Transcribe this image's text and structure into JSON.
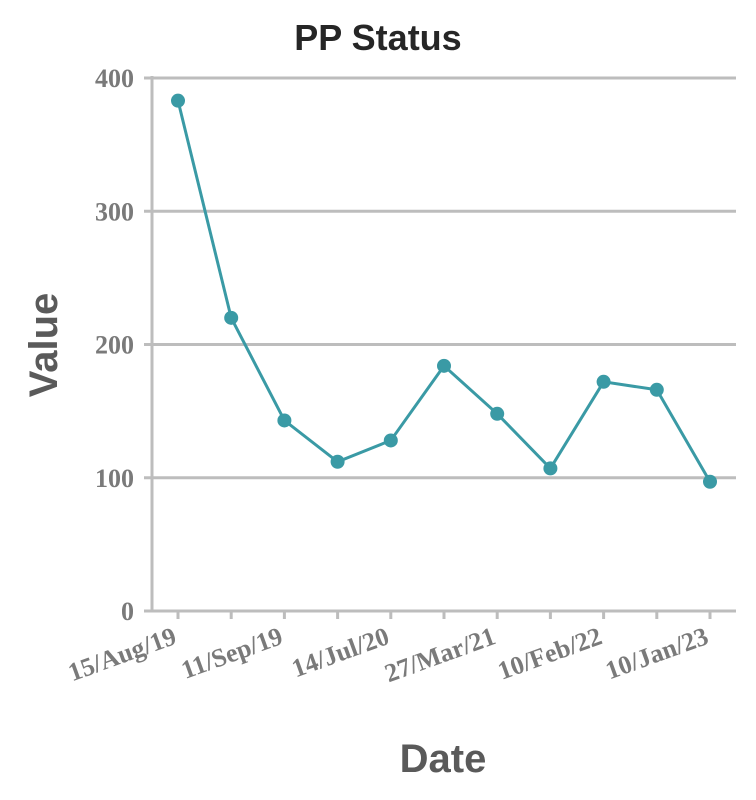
{
  "chart_data": {
    "type": "line",
    "title": "PP Status",
    "xlabel": "Date",
    "ylabel": "Value",
    "ylim": [
      0,
      400
    ],
    "yticks": [
      0,
      100,
      200,
      300,
      400
    ],
    "grid": true,
    "x": [
      "15/Aug/19",
      "?",
      "11/Sep/19",
      "?",
      "14/Jul/20",
      "?",
      "27/Mar/21",
      "?",
      "10/Feb/22",
      "?",
      "10/Jan/23"
    ],
    "xticks_shown": [
      "15/Aug/19",
      "11/Sep/19",
      "14/Jul/20",
      "27/Mar/21",
      "10/Feb/22",
      "10/Jan/23"
    ],
    "series": [
      {
        "color": "#3a9aa5",
        "values": [
          383,
          220,
          143,
          112,
          128,
          184,
          148,
          107,
          172,
          166,
          97
        ]
      }
    ]
  }
}
